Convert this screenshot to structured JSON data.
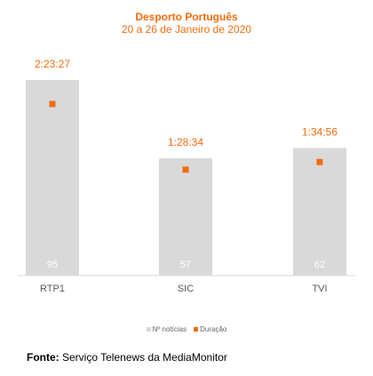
{
  "chart_data": {
    "type": "bar",
    "title": "Desporto Português",
    "subtitle": "20 a 26 de Janeiro de 2020",
    "categories": [
      "RTP1",
      "SIC",
      "TVI"
    ],
    "series": [
      {
        "name": "Nº notícias",
        "values": [
          95,
          57,
          62
        ],
        "color": "#d9d9d9"
      },
      {
        "name": "Duração",
        "values": [
          "2:23:27",
          "1:28:34",
          "1:34:56"
        ],
        "seconds": [
          8607,
          5314,
          5696
        ],
        "color": "#f26c0d",
        "marker": "square"
      }
    ],
    "legend_position": "bottom"
  },
  "source": {
    "label": "Fonte:",
    "text": "Serviço Telenews da MediaMonitor"
  }
}
